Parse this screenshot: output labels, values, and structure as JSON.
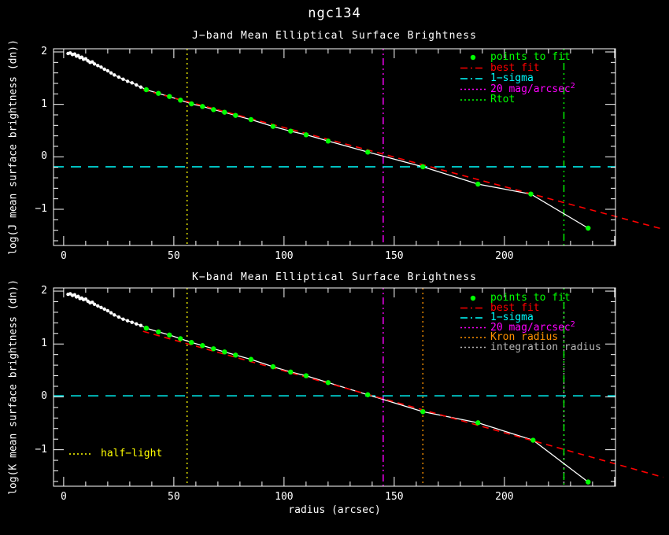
{
  "title": "ngc134",
  "colors": {
    "background": "#000000",
    "axis": "#ffffff",
    "profile": "#ffffff",
    "points_to_fit": "#00ff00",
    "best_fit": "#ff0000",
    "one_sigma": "#00ffff",
    "mag20_line": "#ff00ff",
    "rtot_line": "#00ff00",
    "kron_line": "#ff9100",
    "integration_line": "#b4b4b4",
    "half_light": "#ffff00"
  },
  "chart_data": [
    {
      "type": "line",
      "band": "J",
      "title": "J−band Mean Elliptical Surface Brightness",
      "xlabel": "",
      "ylabel": "log(J mean surface brightness (dn))",
      "xlim": [
        -4.6,
        250.4
      ],
      "ylim": [
        -1.69,
        2.06
      ],
      "x_ticks": [
        0,
        50,
        100,
        150,
        200
      ],
      "y_ticks": [
        2,
        1,
        0,
        -1
      ],
      "x_minor_step": 10,
      "y_minor_step": 0.2,
      "grid": false,
      "legend_position": "top-right",
      "series": [
        {
          "name": "measured profile",
          "color": "#ffffff",
          "marker": "circle-small",
          "points": [
            [
              2,
              1.97
            ],
            [
              3,
              1.98
            ],
            [
              4,
              1.95
            ],
            [
              5,
              1.96
            ],
            [
              5.8,
              1.92
            ],
            [
              6.6,
              1.93
            ],
            [
              7.4,
              1.89
            ],
            [
              8.2,
              1.9
            ],
            [
              9,
              1.86
            ],
            [
              10,
              1.87
            ],
            [
              11,
              1.83
            ],
            [
              12,
              1.8
            ],
            [
              13,
              1.81
            ],
            [
              14,
              1.77
            ],
            [
              15.5,
              1.74
            ],
            [
              17,
              1.71
            ],
            [
              18.5,
              1.67
            ],
            [
              20,
              1.64
            ],
            [
              21.5,
              1.6
            ],
            [
              23,
              1.56
            ],
            [
              25,
              1.52
            ],
            [
              27,
              1.48
            ],
            [
              29,
              1.44
            ],
            [
              31,
              1.41
            ],
            [
              33,
              1.37
            ],
            [
              35,
              1.33
            ]
          ]
        },
        {
          "name": "points to fit",
          "color": "#00ff00",
          "marker": "circle",
          "points": [
            [
              37.5,
              1.28
            ],
            [
              43,
              1.21
            ],
            [
              48,
              1.15
            ],
            [
              53,
              1.08
            ],
            [
              58,
              1.01
            ],
            [
              63,
              0.96
            ],
            [
              68,
              0.9
            ],
            [
              73,
              0.85
            ],
            [
              78,
              0.79
            ],
            [
              85,
              0.71
            ],
            [
              95,
              0.58
            ],
            [
              103,
              0.49
            ],
            [
              110,
              0.42
            ],
            [
              120,
              0.3
            ],
            [
              138,
              0.09
            ],
            [
              163,
              -0.19
            ],
            [
              188,
              -0.52
            ],
            [
              212,
              -0.71
            ],
            [
              238,
              -1.36
            ]
          ]
        },
        {
          "name": "best fit",
          "color": "#ff0000",
          "style": "dashed",
          "points": [
            [
              36,
              1.28
            ],
            [
              272,
              -1.38
            ]
          ]
        }
      ],
      "hlines": [
        {
          "name": "1−sigma",
          "y": -0.19,
          "color": "#00ffff",
          "style": "long-dash"
        }
      ],
      "vlines": [
        {
          "name": "half-light",
          "x": 56,
          "color": "#ffff00",
          "style": "dotted"
        },
        {
          "name": "20 mag/arcsec2",
          "x": 145,
          "color": "#ff00ff",
          "style": "dash-dot"
        },
        {
          "name": "Rtot",
          "x": 227,
          "color": "#00ff00",
          "style": "dash-dot2"
        }
      ],
      "legend": [
        {
          "label": "points to fit",
          "color": "#00ff00",
          "marker": "dot"
        },
        {
          "label": "best fit",
          "color": "#ff0000",
          "marker": "dashed"
        },
        {
          "label": "1−sigma",
          "color": "#00ffff",
          "marker": "dashed"
        },
        {
          "label": "20 mag/arcsec",
          "sup": "2",
          "color": "#ff00ff",
          "marker": "dotted"
        },
        {
          "label": "Rtot",
          "color": "#00ff00",
          "marker": "dotted"
        }
      ],
      "annotations": []
    },
    {
      "type": "line",
      "band": "K",
      "title": "K−band Mean Elliptical Surface Brightness",
      "xlabel": "radius (arcsec)",
      "ylabel": "log(K mean surface brightness (dn))",
      "xlim": [
        -4.6,
        250.4
      ],
      "ylim": [
        -1.69,
        2.06
      ],
      "x_ticks": [
        0,
        50,
        100,
        150,
        200
      ],
      "y_ticks": [
        2,
        1,
        0,
        -1
      ],
      "x_minor_step": 10,
      "y_minor_step": 0.2,
      "grid": false,
      "legend_position": "top-right",
      "series": [
        {
          "name": "measured profile",
          "color": "#ffffff",
          "marker": "circle-small",
          "points": [
            [
              2,
              1.94
            ],
            [
              3,
              1.95
            ],
            [
              4,
              1.92
            ],
            [
              5,
              1.93
            ],
            [
              5.8,
              1.89
            ],
            [
              6.6,
              1.9
            ],
            [
              7.4,
              1.86
            ],
            [
              8.2,
              1.87
            ],
            [
              9,
              1.84
            ],
            [
              10,
              1.85
            ],
            [
              11,
              1.81
            ],
            [
              12,
              1.78
            ],
            [
              13,
              1.79
            ],
            [
              14,
              1.75
            ],
            [
              15.5,
              1.72
            ],
            [
              17,
              1.69
            ],
            [
              18.5,
              1.66
            ],
            [
              20,
              1.63
            ],
            [
              21.5,
              1.59
            ],
            [
              23,
              1.55
            ],
            [
              25,
              1.51
            ],
            [
              27,
              1.47
            ],
            [
              29,
              1.44
            ],
            [
              31,
              1.41
            ],
            [
              33,
              1.38
            ],
            [
              35,
              1.35
            ]
          ]
        },
        {
          "name": "points to fit",
          "color": "#00ff00",
          "marker": "circle",
          "points": [
            [
              37.5,
              1.3
            ],
            [
              43,
              1.23
            ],
            [
              48,
              1.17
            ],
            [
              53,
              1.1
            ],
            [
              58,
              1.03
            ],
            [
              63,
              0.97
            ],
            [
              68,
              0.91
            ],
            [
              73,
              0.85
            ],
            [
              78,
              0.79
            ],
            [
              85,
              0.71
            ],
            [
              95,
              0.57
            ],
            [
              103,
              0.47
            ],
            [
              110,
              0.4
            ],
            [
              120,
              0.27
            ],
            [
              138,
              0.04
            ],
            [
              163,
              -0.28
            ],
            [
              188,
              -0.49
            ],
            [
              213,
              -0.82
            ],
            [
              238,
              -1.61
            ]
          ]
        },
        {
          "name": "best fit",
          "color": "#ff0000",
          "style": "dashed",
          "points": [
            [
              36,
              1.24
            ],
            [
              272,
              -1.52
            ]
          ]
        }
      ],
      "hlines": [
        {
          "name": "1−sigma",
          "y": 0.02,
          "color": "#00ffff",
          "style": "long-dash"
        }
      ],
      "vlines": [
        {
          "name": "half-light",
          "x": 56,
          "color": "#ffff00",
          "style": "dotted"
        },
        {
          "name": "20 mag/arcsec2",
          "x": 145,
          "color": "#ff00ff",
          "style": "dash-dot"
        },
        {
          "name": "Kron radius",
          "x": 163,
          "color": "#ff9100",
          "style": "dotted"
        },
        {
          "name": "integration radius",
          "x": 227,
          "color": "#b4b4b4",
          "style": "dotted"
        },
        {
          "name": "Rtot",
          "x": 227,
          "color": "#00ff00",
          "style": "dash-dot2"
        }
      ],
      "legend": [
        {
          "label": "points to fit",
          "color": "#00ff00",
          "marker": "dot"
        },
        {
          "label": "best fit",
          "color": "#ff0000",
          "marker": "dashed"
        },
        {
          "label": "1−sigma",
          "color": "#00ffff",
          "marker": "dashed"
        },
        {
          "label": "20 mag/arcsec",
          "sup": "2",
          "color": "#ff00ff",
          "marker": "dotted"
        },
        {
          "label": "Kron radius",
          "color": "#ff9100",
          "marker": "dotted"
        },
        {
          "label": "integration radius",
          "color": "#b4b4b4",
          "marker": "dotted"
        }
      ],
      "annotations": [
        {
          "text": "half−light",
          "color": "#ffff00",
          "marker": "dotted"
        }
      ]
    }
  ]
}
